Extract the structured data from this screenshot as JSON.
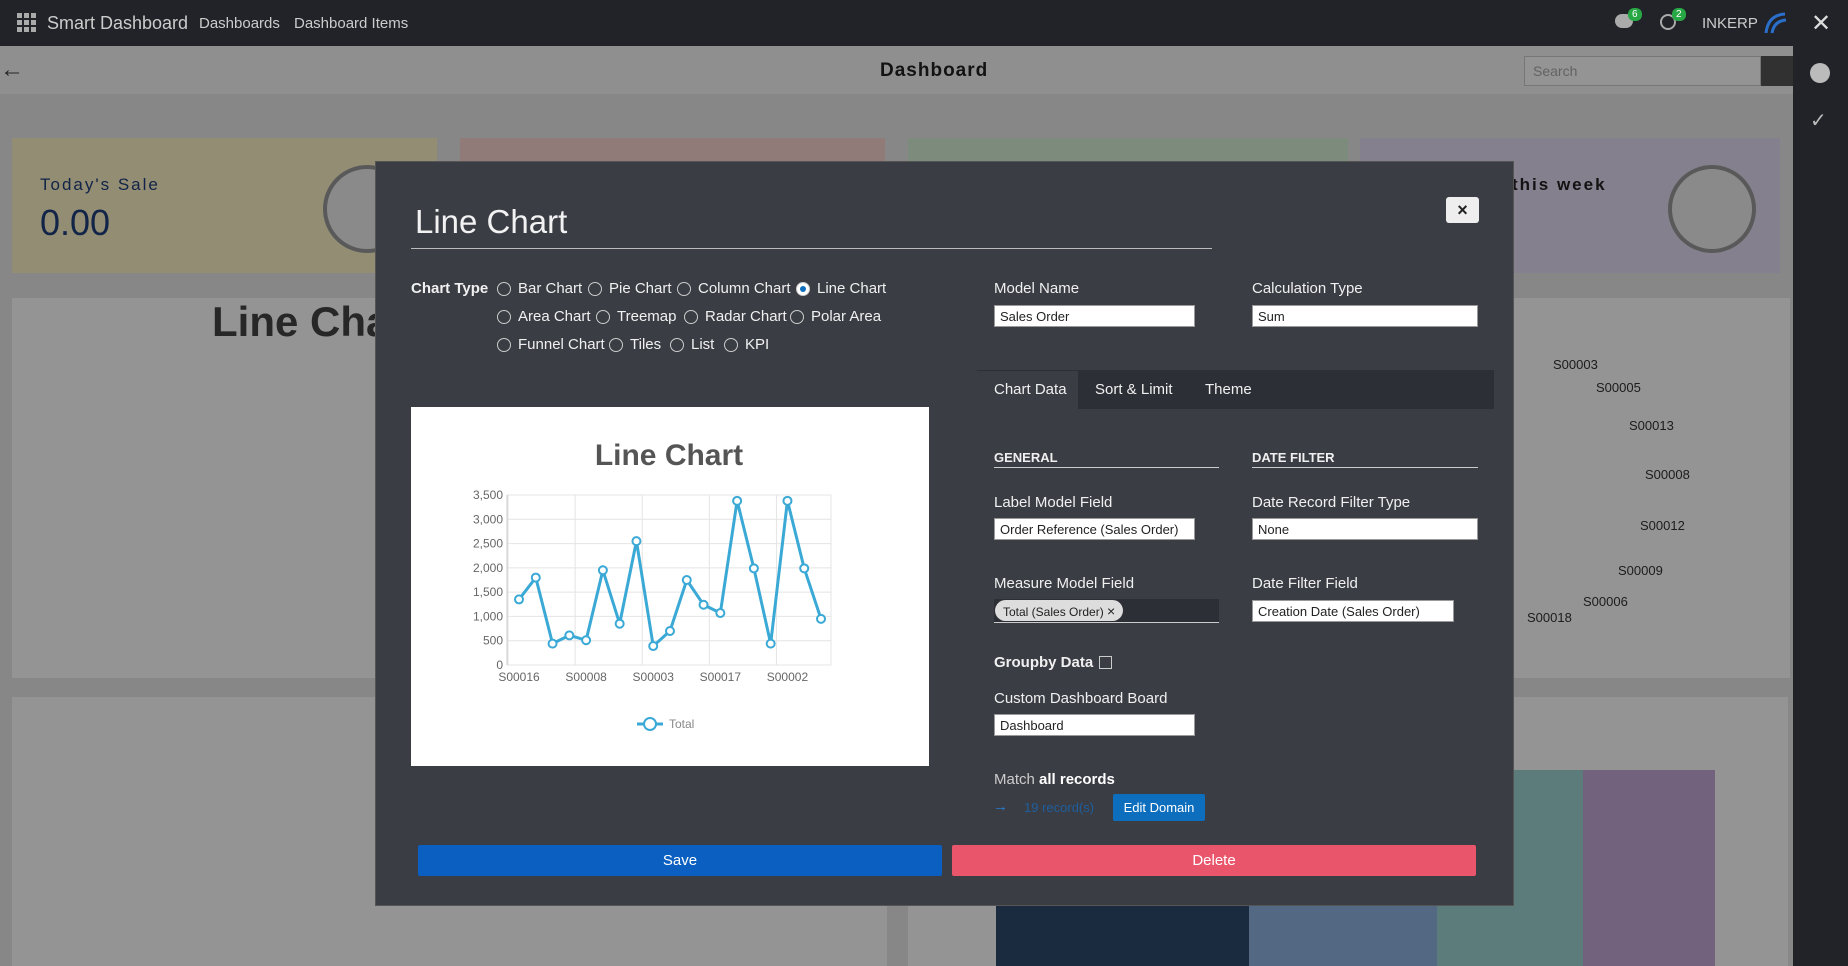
{
  "navbar": {
    "brand": "Smart Dashboard",
    "menu": [
      "Dashboards",
      "Dashboard Items"
    ],
    "chat_count": "6",
    "activity_count": "2",
    "company": "INKERP"
  },
  "header": {
    "title": "Dashboard",
    "search_placeholder": "Search"
  },
  "background": {
    "tiles": [
      {
        "title": "Today's Sale",
        "value": "0.00"
      },
      {
        "title": "this week"
      }
    ],
    "chart_title": "Line Chart",
    "pie_labels": [
      "S00003",
      "S00005",
      "S00013",
      "S00008",
      "S00012",
      "S00009",
      "S00006",
      "S00018"
    ]
  },
  "modal": {
    "name": "Line Chart",
    "close": "×",
    "chart_type_label": "Chart Type",
    "chart_types": [
      "Bar Chart",
      "Pie Chart",
      "Column Chart",
      "Line Chart",
      "Area Chart",
      "Treemap",
      "Radar Chart",
      "Polar Area",
      "Funnel Chart",
      "Tiles",
      "List",
      "KPI"
    ],
    "selected_type": 3,
    "model_name": {
      "label": "Model Name",
      "value": "Sales Order"
    },
    "calculation_type": {
      "label": "Calculation Type",
      "value": "Sum"
    },
    "tabs": [
      "Chart Data",
      "Sort & Limit",
      "Theme"
    ],
    "active_tab": 0,
    "general": "GENERAL",
    "date_filter": "DATE FILTER",
    "label_model_field": {
      "label": "Label Model Field",
      "value": "Order Reference (Sales Order)"
    },
    "date_record_filter_type": {
      "label": "Date Record Filter Type",
      "value": "None"
    },
    "measure_model_field": {
      "label": "Measure Model Field",
      "tag": "Total (Sales Order)",
      "remove": "×"
    },
    "date_filter_field": {
      "label": "Date Filter Field",
      "value": "Creation Date (Sales Order)"
    },
    "groupby": {
      "label": "Groupby Data",
      "checked": false
    },
    "custom_board": {
      "label": "Custom Dashboard Board",
      "value": "Dashboard"
    },
    "match": {
      "prefix": "Match",
      "strong": "all records",
      "records": "19 record(s)",
      "edit": "Edit Domain"
    },
    "save": "Save",
    "delete": "Delete"
  },
  "chart_data": {
    "type": "line",
    "title": "Line Chart",
    "categories": [
      "S00016",
      null,
      null,
      null,
      "S00008",
      null,
      null,
      null,
      "S00003",
      null,
      null,
      null,
      "S00017",
      null,
      null,
      null,
      "S00002",
      null,
      null
    ],
    "series": [
      {
        "name": "Total",
        "color": "#3ba9d6",
        "values": [
          1350,
          1800,
          440,
          610,
          510,
          1950,
          850,
          2550,
          390,
          700,
          1750,
          1240,
          1070,
          3380,
          1990,
          440,
          3380,
          1990,
          950
        ]
      }
    ],
    "ylim": [
      0,
      3500
    ],
    "yticks": [
      0,
      500,
      {
        "value": 1000,
        "label": "1,000"
      },
      {
        "value": 1500,
        "label": "1,500"
      },
      {
        "value": 2000,
        "label": "2,000"
      },
      {
        "value": 2500,
        "label": "2,500"
      },
      {
        "value": 3000,
        "label": "3,000"
      },
      {
        "value": 3500,
        "label": "3,500"
      }
    ],
    "grid": true,
    "legend": "bottom"
  }
}
